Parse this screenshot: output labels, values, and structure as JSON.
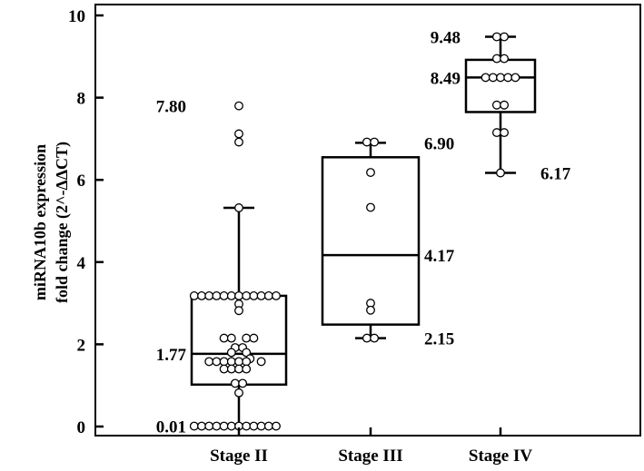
{
  "chart_data": {
    "type": "box",
    "ylabel_lines": [
      "miRNA10b expression",
      "fold change (2^-ΔΔCT)"
    ],
    "ylim": [
      -0.2,
      10.2
    ],
    "yticks": [
      0,
      2,
      4,
      6,
      8,
      10
    ],
    "categories": [
      "Stage II",
      "Stage III",
      "Stage IV"
    ],
    "boxes": [
      {
        "name": "Stage II",
        "whisker_low": 0.01,
        "q1": 1.02,
        "median": 1.77,
        "q3": 3.18,
        "whisker_high": 5.32,
        "points": [
          {
            "y": 7.8,
            "dx": 0
          },
          {
            "y": 7.12,
            "dx": 0
          },
          {
            "y": 6.92,
            "dx": 0
          },
          {
            "y": 5.32,
            "dx": 0
          },
          {
            "y": 3.18,
            "dx": -6
          },
          {
            "y": 3.18,
            "dx": -5
          },
          {
            "y": 3.18,
            "dx": -4
          },
          {
            "y": 3.18,
            "dx": -3
          },
          {
            "y": 3.18,
            "dx": -2
          },
          {
            "y": 3.18,
            "dx": -1
          },
          {
            "y": 3.18,
            "dx": 0
          },
          {
            "y": 3.18,
            "dx": 1
          },
          {
            "y": 3.18,
            "dx": 2
          },
          {
            "y": 3.18,
            "dx": 3
          },
          {
            "y": 3.18,
            "dx": 4
          },
          {
            "y": 3.18,
            "dx": 5
          },
          {
            "y": 2.98,
            "dx": 0
          },
          {
            "y": 2.82,
            "dx": 0
          },
          {
            "y": 2.15,
            "dx": -2
          },
          {
            "y": 2.15,
            "dx": -1
          },
          {
            "y": 2.15,
            "dx": 1
          },
          {
            "y": 2.15,
            "dx": 2
          },
          {
            "y": 1.92,
            "dx": -0.5
          },
          {
            "y": 1.92,
            "dx": 0.5
          },
          {
            "y": 1.8,
            "dx": -1
          },
          {
            "y": 1.8,
            "dx": 1
          },
          {
            "y": 1.65,
            "dx": 1.5
          },
          {
            "y": 1.58,
            "dx": -4
          },
          {
            "y": 1.58,
            "dx": -3
          },
          {
            "y": 1.58,
            "dx": -2
          },
          {
            "y": 1.58,
            "dx": -1
          },
          {
            "y": 1.58,
            "dx": 0
          },
          {
            "y": 1.58,
            "dx": 1
          },
          {
            "y": 1.58,
            "dx": 3
          },
          {
            "y": 1.4,
            "dx": -2
          },
          {
            "y": 1.4,
            "dx": -1
          },
          {
            "y": 1.4,
            "dx": 0
          },
          {
            "y": 1.4,
            "dx": 1
          },
          {
            "y": 1.05,
            "dx": -0.5
          },
          {
            "y": 1.05,
            "dx": 0.5
          },
          {
            "y": 0.82,
            "dx": 0
          },
          {
            "y": 0.01,
            "dx": -6
          },
          {
            "y": 0.01,
            "dx": -5
          },
          {
            "y": 0.01,
            "dx": -4
          },
          {
            "y": 0.01,
            "dx": -3
          },
          {
            "y": 0.01,
            "dx": -2
          },
          {
            "y": 0.01,
            "dx": -1
          },
          {
            "y": 0.01,
            "dx": 0
          },
          {
            "y": 0.01,
            "dx": 1
          },
          {
            "y": 0.01,
            "dx": 2
          },
          {
            "y": 0.01,
            "dx": 3
          },
          {
            "y": 0.01,
            "dx": 4
          },
          {
            "y": 0.01,
            "dx": 5
          }
        ],
        "annotations": [
          {
            "text": "7.80",
            "y": 7.8,
            "side": "left"
          },
          {
            "text": "1.77",
            "y": 1.77,
            "side": "left"
          },
          {
            "text": "0.01",
            "y": 0.01,
            "side": "left"
          }
        ]
      },
      {
        "name": "Stage III",
        "whisker_low": 2.15,
        "q1": 2.48,
        "median": 4.17,
        "q3": 6.55,
        "whisker_high": 6.9,
        "points": [
          {
            "y": 6.92,
            "dx": -0.5
          },
          {
            "y": 6.92,
            "dx": 0.5
          },
          {
            "y": 6.18,
            "dx": 0
          },
          {
            "y": 5.33,
            "dx": 0
          },
          {
            "y": 3.0,
            "dx": 0
          },
          {
            "y": 2.83,
            "dx": 0
          },
          {
            "y": 2.15,
            "dx": -0.5
          },
          {
            "y": 2.15,
            "dx": 0.5
          }
        ],
        "annotations": [
          {
            "text": "6.90",
            "y": 6.9,
            "side": "right"
          },
          {
            "text": "4.17",
            "y": 4.17,
            "side": "right"
          },
          {
            "text": "2.15",
            "y": 2.15,
            "side": "right"
          }
        ]
      },
      {
        "name": "Stage IV",
        "whisker_low": 6.17,
        "q1": 7.65,
        "median": 8.49,
        "q3": 8.92,
        "whisker_high": 9.48,
        "points": [
          {
            "y": 9.48,
            "dx": -0.5
          },
          {
            "y": 9.48,
            "dx": 0.5
          },
          {
            "y": 8.95,
            "dx": -0.5
          },
          {
            "y": 8.95,
            "dx": 0.5
          },
          {
            "y": 8.49,
            "dx": -2
          },
          {
            "y": 8.49,
            "dx": -1
          },
          {
            "y": 8.49,
            "dx": 0
          },
          {
            "y": 8.49,
            "dx": 1
          },
          {
            "y": 8.49,
            "dx": 2
          },
          {
            "y": 7.82,
            "dx": -0.5
          },
          {
            "y": 7.82,
            "dx": 0.5
          },
          {
            "y": 7.15,
            "dx": -0.5
          },
          {
            "y": 7.15,
            "dx": 0.5
          },
          {
            "y": 6.17,
            "dx": 0
          }
        ],
        "annotations": [
          {
            "text": "9.48",
            "y": 9.48,
            "side": "left"
          },
          {
            "text": "8.49",
            "y": 8.49,
            "side": "left"
          },
          {
            "text": "6.17",
            "y": 6.17,
            "side": "right"
          }
        ]
      }
    ]
  }
}
